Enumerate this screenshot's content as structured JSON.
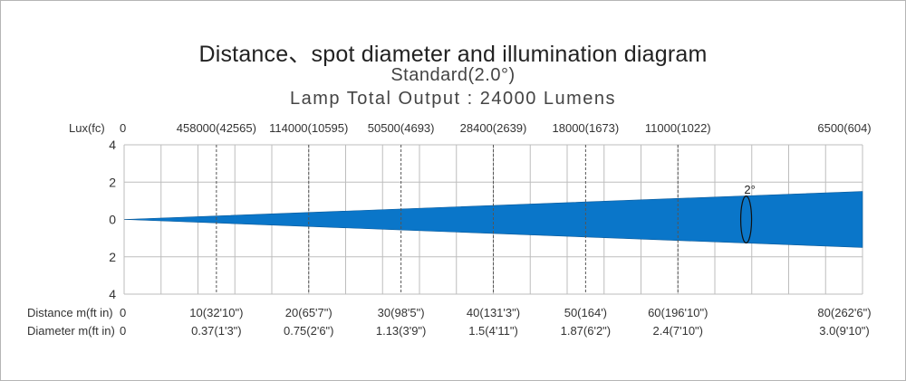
{
  "title": "Distance、spot diameter and illumination diagram",
  "subtitle": "Standard(2.0°)",
  "lamp_output": "Lamp  Total  Output : 24000  Lumens",
  "colors": {
    "beam": "#0a76c9",
    "grid": "#bdbdbd",
    "dashed": "#555555",
    "text": "#333333"
  },
  "chart_data": {
    "type": "diagram",
    "beam_angle_label": "2°",
    "row_labels": {
      "lux": "Lux(fc)",
      "distance": "Distance  m(ft in)",
      "diameter": "Diameter m(ft in)"
    },
    "y_ticks": [
      "4",
      "2",
      "0",
      "2",
      "4"
    ],
    "y_values": [
      4,
      2,
      0,
      -2,
      -4
    ],
    "ylim": [
      -4,
      4
    ],
    "x_max": 80,
    "beam_half_width_at_max": 1.5,
    "origin": {
      "lux": "0",
      "distance": "0",
      "diameter": "0"
    },
    "points": [
      {
        "distance_m": 10,
        "lux": "458000(42565)",
        "distance": "10(32'10\")",
        "diameter": "0.37(1'3\")"
      },
      {
        "distance_m": 20,
        "lux": "114000(10595)",
        "distance": "20(65'7\")",
        "diameter": "0.75(2'6\")"
      },
      {
        "distance_m": 30,
        "lux": "50500(4693)",
        "distance": "30(98'5\")",
        "diameter": "1.13(3'9\")"
      },
      {
        "distance_m": 40,
        "lux": "28400(2639)",
        "distance": "40(131'3\")",
        "diameter": "1.5(4'11\")"
      },
      {
        "distance_m": 50,
        "lux": "18000(1673)",
        "distance": "50(164')",
        "diameter": "1.87(6'2\")"
      },
      {
        "distance_m": 60,
        "lux": "11000(1022)",
        "distance": "60(196'10\")",
        "diameter": "2.4(7'10\")"
      },
      {
        "distance_m": 80,
        "lux": "6500(604)",
        "distance": "80(262'6\")",
        "diameter": "3.0(9'10\")"
      }
    ]
  }
}
